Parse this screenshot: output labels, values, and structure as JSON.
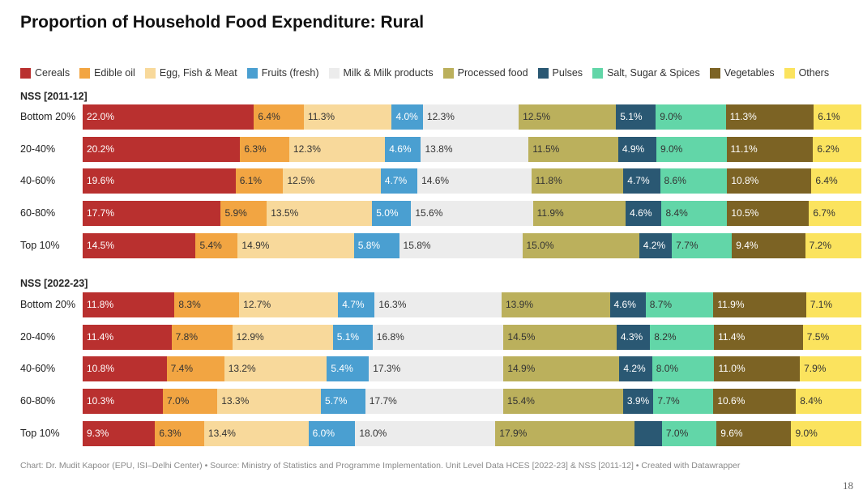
{
  "header": {
    "title": "Proportion of Household Food Expenditure: Rural"
  },
  "footer": {
    "source": "Chart: Dr. Mudit Kapoor (EPU, ISI–Delhi Center) • Source: Ministry of Statistics and Programme Implementation. Unit Level Data HCES [2022-23] & NSS [2011-12] • Created with Datawrapper",
    "page_number": "18"
  },
  "chart_data": {
    "type": "bar",
    "orientation": "horizontal",
    "stacked": true,
    "normalized": true,
    "title": "Proportion of Household Food Expenditure: Rural",
    "legend_position": "top",
    "grid": false,
    "series": [
      {
        "name": "Cereals",
        "color": "#b9302f",
        "text": "#ffffff"
      },
      {
        "name": "Edible oil",
        "color": "#f2a542",
        "text": "#333333"
      },
      {
        "name": "Egg, Fish & Meat",
        "color": "#f8d99b",
        "text": "#333333"
      },
      {
        "name": "Fruits (fresh)",
        "color": "#4a9fd1",
        "text": "#ffffff"
      },
      {
        "name": "Milk & Milk products",
        "color": "#ececec",
        "text": "#333333"
      },
      {
        "name": "Processed food",
        "color": "#bbb05c",
        "text": "#333333"
      },
      {
        "name": "Pulses",
        "color": "#2a5873",
        "text": "#ffffff"
      },
      {
        "name": "Salt, Sugar & Spices",
        "color": "#62d6a8",
        "text": "#333333"
      },
      {
        "name": "Vegetables",
        "color": "#7c6324",
        "text": "#ffffff"
      },
      {
        "name": "Others",
        "color": "#fbe35e",
        "text": "#333333"
      }
    ],
    "groups": [
      {
        "name": "NSS [2011-12]",
        "rows": [
          {
            "label": "Bottom 20%",
            "values": [
              22.0,
              6.4,
              11.3,
              4.0,
              12.3,
              12.5,
              5.1,
              9.0,
              11.3,
              6.1
            ],
            "labels": [
              "22.0%",
              "6.4%",
              "11.3%",
              "4.0%",
              "12.3%",
              "12.5%",
              "5.1%",
              "9.0%",
              "11.3%",
              "6.1%"
            ]
          },
          {
            "label": "20-40%",
            "values": [
              20.2,
              6.3,
              12.3,
              4.6,
              13.8,
              11.5,
              4.9,
              9.0,
              11.1,
              6.2
            ],
            "labels": [
              "20.2%",
              "6.3%",
              "12.3%",
              "4.6%",
              "13.8%",
              "11.5%",
              "4.9%",
              "9.0%",
              "11.1%",
              "6.2%"
            ]
          },
          {
            "label": "40-60%",
            "values": [
              19.6,
              6.1,
              12.5,
              4.7,
              14.6,
              11.8,
              4.7,
              8.6,
              10.8,
              6.4
            ],
            "labels": [
              "19.6%",
              "6.1%",
              "12.5%",
              "4.7%",
              "14.6%",
              "11.8%",
              "4.7%",
              "8.6%",
              "10.8%",
              "6.4%"
            ]
          },
          {
            "label": "60-80%",
            "values": [
              17.7,
              5.9,
              13.5,
              5.0,
              15.6,
              11.9,
              4.6,
              8.4,
              10.5,
              6.7
            ],
            "labels": [
              "17.7%",
              "5.9%",
              "13.5%",
              "5.0%",
              "15.6%",
              "11.9%",
              "4.6%",
              "8.4%",
              "10.5%",
              "6.7%"
            ]
          },
          {
            "label": "Top 10%",
            "values": [
              14.5,
              5.4,
              14.9,
              5.8,
              15.8,
              15.0,
              4.2,
              7.7,
              9.4,
              7.2
            ],
            "labels": [
              "14.5%",
              "5.4%",
              "14.9%",
              "5.8%",
              "15.8%",
              "15.0%",
              "4.2%",
              "7.7%",
              "9.4%",
              "7.2%"
            ]
          }
        ]
      },
      {
        "name": "NSS [2022-23]",
        "rows": [
          {
            "label": "Bottom 20%",
            "values": [
              11.8,
              8.3,
              12.7,
              4.7,
              16.3,
              13.9,
              4.6,
              8.7,
              11.9,
              7.1
            ],
            "labels": [
              "11.8%",
              "8.3%",
              "12.7%",
              "4.7%",
              "16.3%",
              "13.9%",
              "4.6%",
              "8.7%",
              "11.9%",
              "7.1%"
            ]
          },
          {
            "label": "20-40%",
            "values": [
              11.4,
              7.8,
              12.9,
              5.1,
              16.8,
              14.5,
              4.3,
              8.2,
              11.4,
              7.5
            ],
            "labels": [
              "11.4%",
              "7.8%",
              "12.9%",
              "5.1%",
              "16.8%",
              "14.5%",
              "4.3%",
              "8.2%",
              "11.4%",
              "7.5%"
            ]
          },
          {
            "label": "40-60%",
            "values": [
              10.8,
              7.4,
              13.2,
              5.4,
              17.3,
              14.9,
              4.2,
              8.0,
              11.0,
              7.9
            ],
            "labels": [
              "10.8%",
              "7.4%",
              "13.2%",
              "5.4%",
              "17.3%",
              "14.9%",
              "4.2%",
              "8.0%",
              "11.0%",
              "7.9%"
            ]
          },
          {
            "label": "60-80%",
            "values": [
              10.3,
              7.0,
              13.3,
              5.7,
              17.7,
              15.4,
              3.9,
              7.7,
              10.6,
              8.4
            ],
            "labels": [
              "10.3%",
              "7.0%",
              "13.3%",
              "5.7%",
              "17.7%",
              "15.4%",
              "3.9%",
              "7.7%",
              "10.6%",
              "8.4%"
            ]
          },
          {
            "label": "Top 10%",
            "values": [
              9.3,
              6.3,
              13.4,
              6.0,
              18.0,
              17.9,
              3.5,
              7.0,
              9.6,
              9.0
            ],
            "labels": [
              "9.3%",
              "6.3%",
              "13.4%",
              "6.0%",
              "18.0%",
              "17.9%",
              "",
              "7.0%",
              "9.6%",
              "9.0%"
            ]
          }
        ]
      }
    ]
  }
}
